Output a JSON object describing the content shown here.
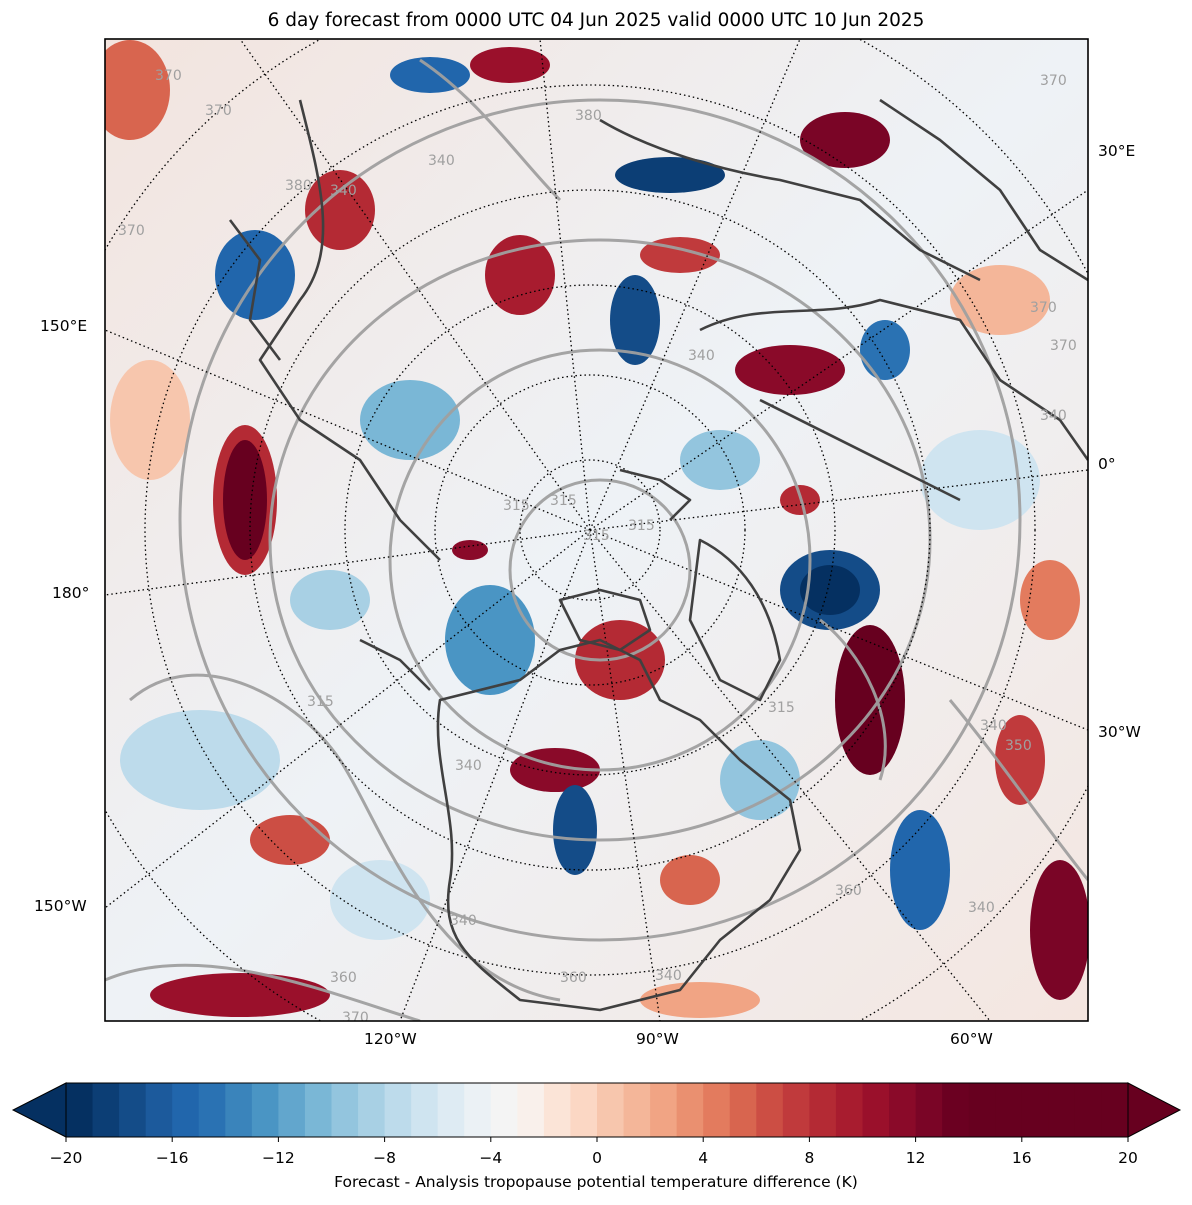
{
  "title": "6 day forecast from 0000 UTC 04 Jun 2025 valid 0000 UTC 10 Jun 2025",
  "map": {
    "projection": "north-polar-stereographic",
    "lon_labels_left": [
      "150°E",
      "180°",
      "150°W"
    ],
    "lon_labels_right": [
      "30°E",
      "0°",
      "30°W"
    ],
    "lon_labels_bottom": [
      "120°W",
      "90°W",
      "60°W"
    ],
    "contour_labels": [
      "370",
      "370",
      "380",
      "340",
      "340",
      "380",
      "370",
      "340",
      "315",
      "315",
      "315",
      "315",
      "315",
      "315",
      "340",
      "370",
      "340",
      "350",
      "340",
      "360",
      "340",
      "360",
      "340",
      "360",
      "370",
      "340",
      "370",
      "370"
    ],
    "field_colormap": "RdBu_r"
  },
  "colorbar": {
    "label": "Forecast - Analysis tropopause potential temperature difference (K)",
    "ticks": [
      "−20",
      "−16",
      "−12",
      "−8",
      "−4",
      "0",
      "4",
      "8",
      "12",
      "16",
      "20"
    ],
    "min": -20,
    "max": 20,
    "levels": 40,
    "extend": "both",
    "colors": [
      "#053061",
      "#0c3e75",
      "#144c88",
      "#1c5a9c",
      "#2166ac",
      "#2a72b3",
      "#3a84bb",
      "#4a95c4",
      "#62a6cd",
      "#7ab7d6",
      "#93c5de",
      "#a8d0e4",
      "#bddbeb",
      "#cfe4f0",
      "#deebf3",
      "#ebf1f5",
      "#f4f4f4",
      "#f9f0eb",
      "#fbe4d7",
      "#fbd7c4",
      "#f7c6ad",
      "#f4b699",
      "#f1a484",
      "#ea9070",
      "#e37b5e",
      "#d8654f",
      "#cc4e44",
      "#c03a3c",
      "#b42a34",
      "#a81c2f",
      "#9a102b",
      "#8a0a29",
      "#7a0526",
      "#6b0021",
      "#67001f",
      "#67001f",
      "#67001f",
      "#67001f",
      "#67001f",
      "#67001f"
    ]
  }
}
